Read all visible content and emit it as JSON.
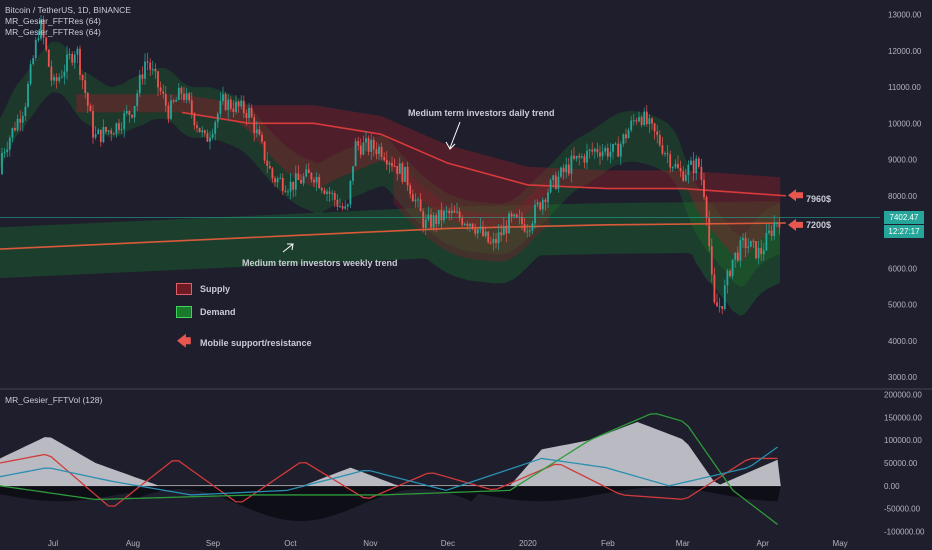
{
  "header": {
    "symbol_line": "Bitcoin / TetherUS, 1D, BINANCE",
    "indicator1": "MR_Gesier_FFTRes (64)",
    "indicator2": "MR_Gesier_FFTRes (64)",
    "vol_indicator": "MR_Gesier_FFTVol (128)"
  },
  "annotations": {
    "daily": "Medium term investors daily trend",
    "weekly": "Medium term investors weekly trend",
    "level_high": "7960$",
    "level_low": "7200$"
  },
  "key": {
    "supply": "Supply",
    "demand": "Demand",
    "mobile": "Mobile support/resistance"
  },
  "price_tags": {
    "last_price": "7402.47",
    "countdown": "12:27:17"
  },
  "colors": {
    "background": "#1e1e2d",
    "up": "#26a69a",
    "down": "#ef5350",
    "supply": "#8b1e2a",
    "demand": "#1b7a2a",
    "accent": "#e8574f",
    "last_price": "#26a69a"
  },
  "chart_data": [
    {
      "type": "candlestick",
      "title": "Bitcoin / TetherUS, 1D, BINANCE",
      "y_axis_ticks": [
        "13000.00",
        "12000.00",
        "11000.00",
        "10000.00",
        "9000.00",
        "8000.00",
        "7000.00",
        "6000.00",
        "5000.00",
        "4000.00",
        "3000.00"
      ],
      "ylim": [
        2700,
        13400
      ],
      "x_tick_labels": [
        "Jul",
        "Aug",
        "Sep",
        "Oct",
        "Nov",
        "Dec",
        "2020",
        "Feb",
        "Mar",
        "Apr",
        "May"
      ],
      "x_dates": [
        "2019-07-01",
        "2019-08-01",
        "2019-09-01",
        "2019-10-01",
        "2019-11-01",
        "2019-12-01",
        "2020-01-01",
        "2020-02-01",
        "2020-03-01",
        "2020-04-01",
        "2020-05-01"
      ],
      "close_series": [
        [
          "2019-06-01",
          8600
        ],
        [
          "2019-06-10",
          9000
        ],
        [
          "2019-06-20",
          10500
        ],
        [
          "2019-06-26",
          12800
        ],
        [
          "2019-07-01",
          11000
        ],
        [
          "2019-07-10",
          12100
        ],
        [
          "2019-07-17",
          9600
        ],
        [
          "2019-07-25",
          9900
        ],
        [
          "2019-08-01",
          10400
        ],
        [
          "2019-08-06",
          11800
        ],
        [
          "2019-08-15",
          10300
        ],
        [
          "2019-08-20",
          10900
        ],
        [
          "2019-08-29",
          9500
        ],
        [
          "2019-09-05",
          10600
        ],
        [
          "2019-09-15",
          10300
        ],
        [
          "2019-09-24",
          8500
        ],
        [
          "2019-10-01",
          8300
        ],
        [
          "2019-10-10",
          8600
        ],
        [
          "2019-10-23",
          7500
        ],
        [
          "2019-10-26",
          9400
        ],
        [
          "2019-11-05",
          9300
        ],
        [
          "2019-11-15",
          8500
        ],
        [
          "2019-11-22",
          7200
        ],
        [
          "2019-12-01",
          7500
        ],
        [
          "2019-12-10",
          7300
        ],
        [
          "2019-12-18",
          6600
        ],
        [
          "2019-12-25",
          7300
        ],
        [
          "2020-01-01",
          7200
        ],
        [
          "2020-01-08",
          8100
        ],
        [
          "2020-01-18",
          8900
        ],
        [
          "2020-01-28",
          9300
        ],
        [
          "2020-02-04",
          9200
        ],
        [
          "2020-02-13",
          10300
        ],
        [
          "2020-02-20",
          9600
        ],
        [
          "2020-02-29",
          8600
        ],
        [
          "2020-03-07",
          8900
        ],
        [
          "2020-03-10",
          7900
        ],
        [
          "2020-03-13",
          4900
        ],
        [
          "2020-03-16",
          5000
        ],
        [
          "2020-03-20",
          6200
        ],
        [
          "2020-03-25",
          6700
        ],
        [
          "2020-03-31",
          6400
        ],
        [
          "2020-04-06",
          7300
        ],
        [
          "2020-04-08",
          7402.47
        ]
      ],
      "daily_trend": [
        [
          "2019-08-20",
          10300
        ],
        [
          "2019-09-15",
          10000
        ],
        [
          "2019-10-10",
          10000
        ],
        [
          "2019-11-05",
          9700
        ],
        [
          "2019-12-01",
          8900
        ],
        [
          "2020-01-01",
          8300
        ],
        [
          "2020-02-01",
          8200
        ],
        [
          "2020-03-01",
          8200
        ],
        [
          "2020-04-10",
          8000
        ]
      ],
      "weekly_trend": [
        [
          "2019-06-01",
          6500
        ],
        [
          "2019-08-01",
          6700
        ],
        [
          "2019-10-01",
          6900
        ],
        [
          "2019-12-01",
          7100
        ],
        [
          "2020-02-01",
          7200
        ],
        [
          "2020-04-10",
          7250
        ]
      ],
      "levels": [
        7960,
        7200
      ],
      "last_price": 7402.47
    },
    {
      "type": "line",
      "title": "MR_Gesier_FFTVol (128)",
      "y_axis_ticks": [
        "200000.00",
        "150000.00",
        "100000.00",
        "50000.00",
        "0.00",
        "-50000.00",
        "-100000.00"
      ],
      "ylim": [
        -110000,
        210000
      ],
      "series": [
        {
          "name": "area",
          "values": [
            [
              0,
              60000
            ],
            [
              15,
              110000
            ],
            [
              30,
              50000
            ],
            [
              50,
              0
            ],
            [
              95,
              0
            ],
            [
              110,
              40000
            ],
            [
              125,
              0
            ],
            [
              160,
              0
            ],
            [
              170,
              80000
            ],
            [
              185,
              100000
            ],
            [
              200,
              140000
            ],
            [
              215,
              100000
            ],
            [
              225,
              0
            ],
            [
              245,
              60000
            ]
          ]
        },
        {
          "name": "red",
          "values": [
            [
              0,
              50000
            ],
            [
              15,
              70000
            ],
            [
              35,
              -50000
            ],
            [
              55,
              60000
            ],
            [
              75,
              -40000
            ],
            [
              95,
              55000
            ],
            [
              115,
              -30000
            ],
            [
              135,
              30000
            ],
            [
              155,
              -10000
            ],
            [
              175,
              50000
            ],
            [
              195,
              -20000
            ],
            [
              215,
              -30000
            ],
            [
              235,
              60000
            ]
          ]
        },
        {
          "name": "green",
          "values": [
            [
              0,
              0
            ],
            [
              30,
              -30000
            ],
            [
              80,
              -20000
            ],
            [
              120,
              -20000
            ],
            [
              160,
              -10000
            ],
            [
              185,
              100000
            ],
            [
              205,
              160000
            ],
            [
              215,
              140000
            ],
            [
              230,
              -10000
            ],
            [
              245,
              -90000
            ]
          ]
        },
        {
          "name": "blue",
          "values": [
            [
              0,
              20000
            ],
            [
              15,
              40000
            ],
            [
              35,
              10000
            ],
            [
              60,
              -20000
            ],
            [
              90,
              -10000
            ],
            [
              115,
              35000
            ],
            [
              140,
              -10000
            ],
            [
              170,
              60000
            ],
            [
              190,
              40000
            ],
            [
              210,
              0
            ],
            [
              235,
              40000
            ],
            [
              245,
              90000
            ]
          ]
        }
      ]
    }
  ]
}
